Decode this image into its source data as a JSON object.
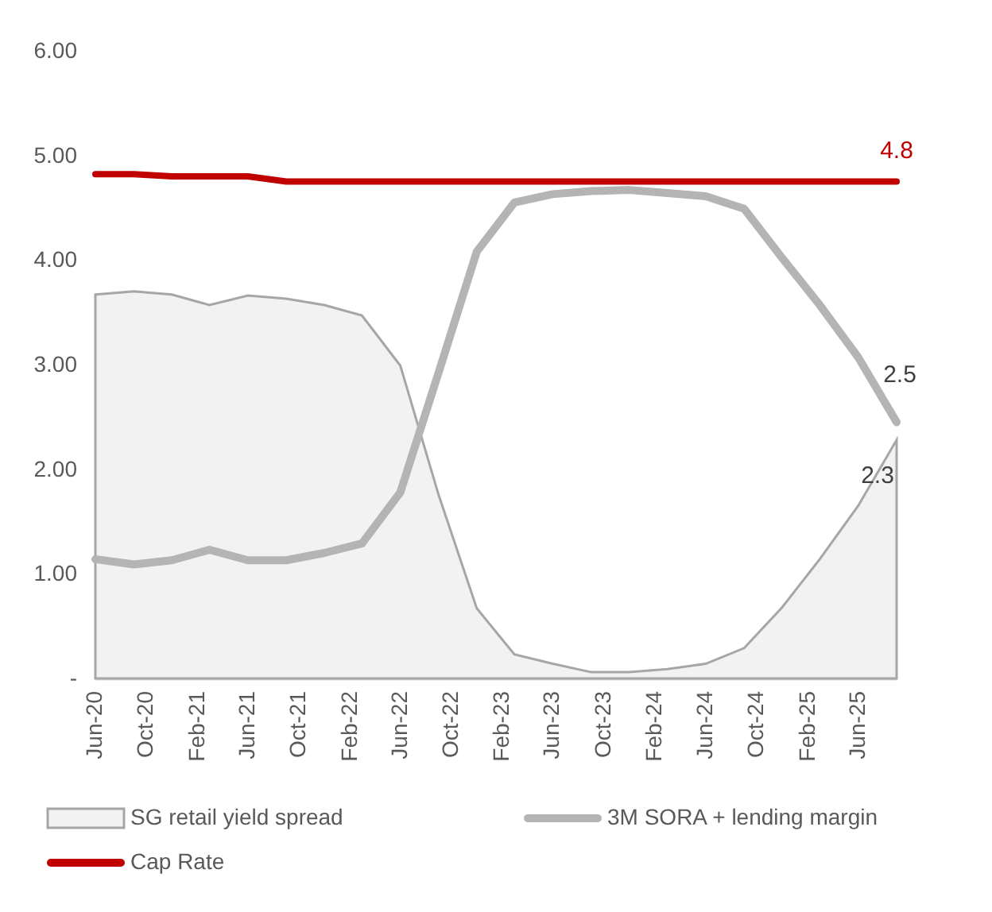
{
  "chart_data": {
    "type": "line",
    "x": [
      "2020-06",
      "2020-09",
      "2020-12",
      "2021-03",
      "2021-06",
      "2021-09",
      "2021-12",
      "2022-03",
      "2022-06",
      "2022-09",
      "2022-12",
      "2023-03",
      "2023-06",
      "2023-09",
      "2023-12",
      "2024-03",
      "2024-06",
      "2024-09",
      "2024-12",
      "2025-03",
      "2025-06",
      "2025-09"
    ],
    "series": [
      {
        "name": "SG retail yield spread",
        "type": "area",
        "color": "#f2f2f2",
        "values": [
          3.67,
          3.7,
          3.67,
          3.57,
          3.66,
          3.63,
          3.57,
          3.47,
          2.99,
          1.75,
          0.67,
          0.23,
          0.14,
          0.06,
          0.06,
          0.09,
          0.14,
          0.29,
          0.68,
          1.14,
          1.65,
          2.28
        ],
        "value_labels": [
          null,
          null,
          null,
          null,
          null,
          null,
          null,
          null,
          null,
          null,
          null,
          null,
          null,
          null,
          null,
          null,
          null,
          null,
          null,
          null,
          null,
          "2.3"
        ]
      },
      {
        "name": "3M SORA + lending margin",
        "type": "line",
        "color": "#b4b4b4",
        "values": [
          1.14,
          1.09,
          1.13,
          1.23,
          1.13,
          1.13,
          1.2,
          1.29,
          1.78,
          2.93,
          4.08,
          4.55,
          4.63,
          4.66,
          4.67,
          4.64,
          4.61,
          4.49,
          4.02,
          3.57,
          3.07,
          2.45
        ],
        "value_labels": [
          null,
          null,
          null,
          null,
          null,
          null,
          null,
          null,
          null,
          null,
          null,
          null,
          null,
          null,
          null,
          null,
          null,
          null,
          null,
          null,
          null,
          "2.5"
        ]
      },
      {
        "name": "Cap Rate",
        "type": "line",
        "color": "#c00000",
        "values": [
          4.82,
          4.82,
          4.8,
          4.8,
          4.8,
          4.75,
          4.75,
          4.75,
          4.75,
          4.75,
          4.75,
          4.75,
          4.75,
          4.75,
          4.75,
          4.75,
          4.75,
          4.75,
          4.75,
          4.75,
          4.75,
          4.75
        ],
        "value_labels": [
          null,
          null,
          null,
          null,
          null,
          null,
          null,
          null,
          null,
          null,
          null,
          null,
          null,
          null,
          null,
          null,
          null,
          null,
          null,
          null,
          null,
          "4.8"
        ]
      }
    ],
    "xlim": [
      "2020-06",
      "2025-09"
    ],
    "xticks": [
      {
        "value": "2020-06",
        "label": "Jun-20"
      },
      {
        "value": "2020-10",
        "label": "Oct-20"
      },
      {
        "value": "2021-02",
        "label": "Feb-21"
      },
      {
        "value": "2021-06",
        "label": "Jun-21"
      },
      {
        "value": "2021-10",
        "label": "Oct-21"
      },
      {
        "value": "2022-02",
        "label": "Feb-22"
      },
      {
        "value": "2022-06",
        "label": "Jun-22"
      },
      {
        "value": "2022-10",
        "label": "Oct-22"
      },
      {
        "value": "2023-02",
        "label": "Feb-23"
      },
      {
        "value": "2023-06",
        "label": "Jun-23"
      },
      {
        "value": "2023-10",
        "label": "Oct-23"
      },
      {
        "value": "2024-02",
        "label": "Feb-24"
      },
      {
        "value": "2024-06",
        "label": "Jun-24"
      },
      {
        "value": "2024-10",
        "label": "Oct-24"
      },
      {
        "value": "2025-02",
        "label": "Feb-25"
      },
      {
        "value": "2025-06",
        "label": "Jun-25"
      }
    ],
    "ylim": [
      0,
      6
    ],
    "yticks": [
      {
        "value": 0,
        "label": "-"
      },
      {
        "value": 1,
        "label": "1.00"
      },
      {
        "value": 2,
        "label": "2.00"
      },
      {
        "value": 3,
        "label": "3.00"
      },
      {
        "value": 4,
        "label": "4.00"
      },
      {
        "value": 5,
        "label": "5.00"
      },
      {
        "value": 6,
        "label": "6.00"
      }
    ],
    "grid": false,
    "legend": "bottom",
    "marker": "none",
    "line_style": "solid"
  }
}
